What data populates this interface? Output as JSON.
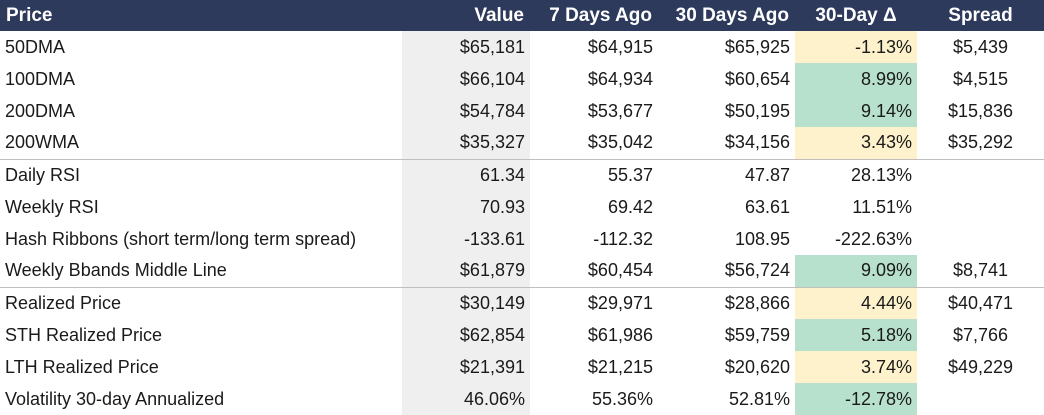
{
  "headers": [
    "Price",
    "Value",
    "7 Days Ago",
    "30 Days Ago",
    "30-Day Δ",
    "Spread"
  ],
  "rows": [
    {
      "name": "50DMA",
      "value": "$65,181",
      "d7": "$64,915",
      "d30": "$65,925",
      "delta": "-1.13%",
      "spread": "$5,439"
    },
    {
      "name": "100DMA",
      "value": "$66,104",
      "d7": "$64,934",
      "d30": "$60,654",
      "delta": "8.99%",
      "spread": "$4,515"
    },
    {
      "name": "200DMA",
      "value": "$54,784",
      "d7": "$53,677",
      "d30": "$50,195",
      "delta": "9.14%",
      "spread": "$15,836"
    },
    {
      "name": "200WMA",
      "value": "$35,327",
      "d7": "$35,042",
      "d30": "$34,156",
      "delta": "3.43%",
      "spread": "$35,292"
    },
    {
      "name": "Daily RSI",
      "value": "61.34",
      "d7": "55.37",
      "d30": "47.87",
      "delta": "28.13%",
      "spread": ""
    },
    {
      "name": "Weekly RSI",
      "value": "70.93",
      "d7": "69.42",
      "d30": "63.61",
      "delta": "11.51%",
      "spread": ""
    },
    {
      "name": "Hash Ribbons (short term/long term spread)",
      "value": "-133.61",
      "d7": "-112.32",
      "d30": "108.95",
      "delta": "-222.63%",
      "spread": ""
    },
    {
      "name": "Weekly Bbands Middle Line",
      "value": "$61,879",
      "d7": "$60,454",
      "d30": "$56,724",
      "delta": "9.09%",
      "spread": "$8,741"
    },
    {
      "name": "Realized Price",
      "value": "$30,149",
      "d7": "$29,971",
      "d30": "$28,866",
      "delta": "4.44%",
      "spread": "$40,471"
    },
    {
      "name": "STH Realized Price",
      "value": "$62,854",
      "d7": "$61,986",
      "d30": "$59,759",
      "delta": "5.18%",
      "spread": "$7,766"
    },
    {
      "name": "LTH Realized Price",
      "value": "$21,391",
      "d7": "$21,215",
      "d30": "$20,620",
      "delta": "3.74%",
      "spread": "$49,229"
    },
    {
      "name": "Volatility 30-day Annualized",
      "value": "46.06%",
      "d7": "55.36%",
      "d30": "52.81%",
      "delta": "-12.78%",
      "spread": ""
    }
  ],
  "colors": {
    "header_bg": "#2e3a5c",
    "header_text": "#ffffff",
    "value_col_bg": "#efefef",
    "positive_bg": "#b7e1cd",
    "neutral_bg": "#fef2cc"
  }
}
